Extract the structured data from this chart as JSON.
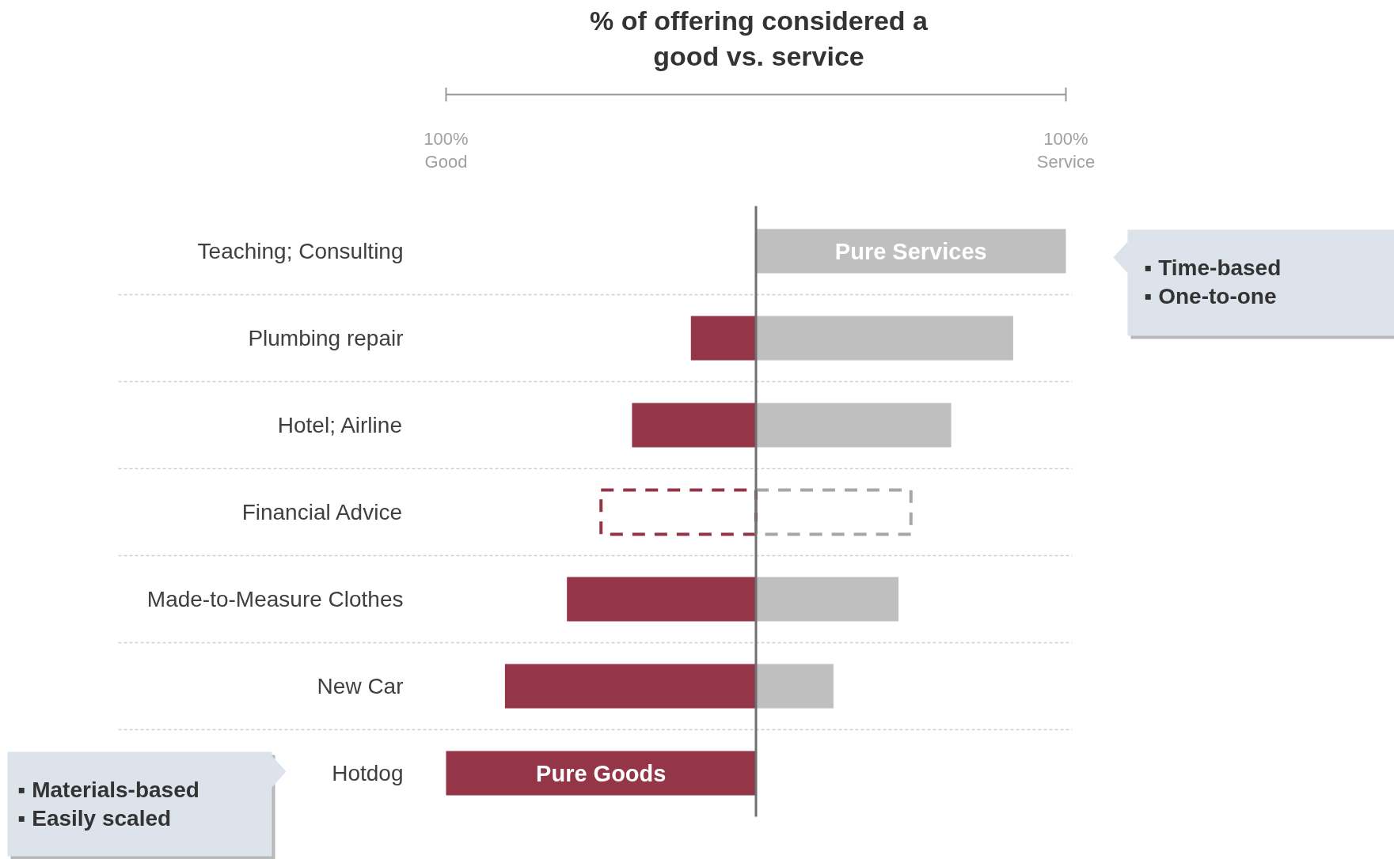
{
  "chart_data": {
    "type": "bar",
    "orientation": "horizontal",
    "title": "% of offering considered a good vs. service",
    "categories": [
      "Teaching; Consulting",
      "Plumbing repair",
      "Hotel; Airline",
      "Financial Advice",
      "Made-to-Measure Clothes",
      "New Car",
      "Hotdog"
    ],
    "series": [
      {
        "color": "#943548",
        "values": [
          null,
          -21,
          -40,
          null,
          -61,
          -81,
          -100
        ]
      },
      {
        "color": "#bfbfbf",
        "values": [
          100,
          83,
          63,
          null,
          46,
          25,
          null
        ]
      },
      {
        "color": "#943548",
        "line_style": "dashed",
        "values": [
          null,
          null,
          null,
          -50,
          null,
          null,
          null
        ]
      },
      {
        "color": "#a6a6a6",
        "line_style": "dashed",
        "values": [
          null,
          null,
          null,
          50,
          null,
          null,
          null
        ]
      }
    ],
    "xlim": [
      -100,
      100
    ],
    "xticks": [
      {
        "value": -100,
        "label": "100%\nGood"
      },
      {
        "value": 100,
        "label": "100%\nService"
      }
    ],
    "ref_lines": [
      {
        "axis": "x",
        "value": 0,
        "color": "#707070"
      }
    ],
    "grid": "y",
    "stacked": true,
    "annotations": [
      "Pure Services",
      "Pure Goods",
      "▪  Time-based\n▪  One-to-one",
      "▪  Materials-based\n▪  Easily scaled"
    ]
  }
}
